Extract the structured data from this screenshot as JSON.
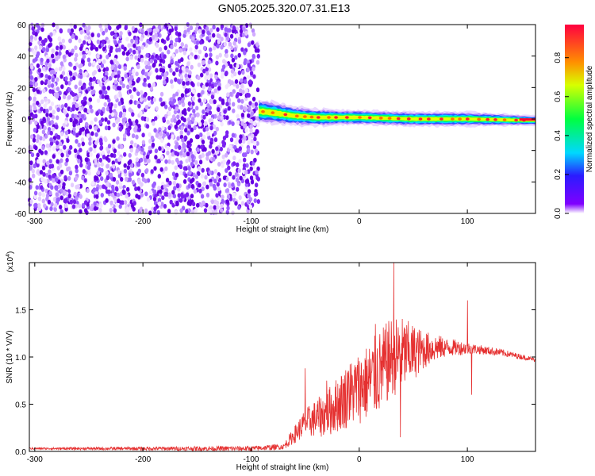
{
  "title": "GN05.2025.320.07.31.E13",
  "colors": {
    "snr_line": "#e53030",
    "scatter": "#6a00e6",
    "background": "#ffffff"
  },
  "chart_data": [
    {
      "type": "heatmap",
      "panel": "spectrogram",
      "xlabel": "Height of straight line (km)",
      "ylabel": "Frequency (Hz)",
      "xlim": [
        -305,
        163
      ],
      "ylim": [
        -60,
        60
      ],
      "xticks": [
        -300,
        -200,
        -100,
        0,
        100
      ],
      "yticks": [
        -60,
        -40,
        -20,
        0,
        20,
        40,
        60
      ],
      "noise_region_x": [
        -305,
        -93
      ],
      "signal_track": {
        "x_start": -93,
        "x_end": 163,
        "center_hz": [
          [
            -93,
            5
          ],
          [
            -80,
            4
          ],
          [
            -60,
            2
          ],
          [
            -40,
            1
          ],
          [
            0,
            1
          ],
          [
            50,
            0
          ],
          [
            100,
            0
          ],
          [
            163,
            -1
          ]
        ],
        "halfwidth_hz": [
          [
            -93,
            5
          ],
          [
            -60,
            4
          ],
          [
            0,
            3
          ],
          [
            100,
            3
          ],
          [
            163,
            2
          ]
        ]
      },
      "colorbar": {
        "label": "Normalized spectral amplitude",
        "ticks": [
          0.0,
          0.2,
          0.4,
          0.6,
          0.8
        ],
        "range": [
          0,
          0.97
        ],
        "colormap": "rainbow"
      }
    },
    {
      "type": "line",
      "panel": "snr",
      "xlabel": "Height of straight line (km)",
      "ylabel": "SNR (10 * V/V)",
      "scale_label": "(x10",
      "scale_exponent": "4",
      "scale_suffix": ")",
      "xlim": [
        -305,
        163
      ],
      "ylim": [
        0,
        2.0
      ],
      "xticks": [
        -300,
        -200,
        -100,
        0,
        100
      ],
      "yticks": [
        0.0,
        0.5,
        1.0,
        1.5
      ],
      "series": [
        {
          "name": "SNR",
          "envelope": [
            [
              -305,
              0.03
            ],
            [
              -100,
              0.03
            ],
            [
              -70,
              0.05
            ],
            [
              -50,
              0.3
            ],
            [
              -30,
              0.4
            ],
            [
              -10,
              0.6
            ],
            [
              10,
              0.75
            ],
            [
              20,
              0.85
            ],
            [
              30,
              1.0
            ],
            [
              50,
              1.05
            ],
            [
              70,
              1.1
            ],
            [
              90,
              1.1
            ],
            [
              110,
              1.08
            ],
            [
              130,
              1.05
            ],
            [
              163,
              0.97
            ]
          ],
          "amplitude": [
            [
              -305,
              0.01
            ],
            [
              -70,
              0.03
            ],
            [
              -50,
              0.15
            ],
            [
              -30,
              0.25
            ],
            [
              -10,
              0.35
            ],
            [
              20,
              0.45
            ],
            [
              40,
              0.4
            ],
            [
              60,
              0.2
            ],
            [
              80,
              0.1
            ],
            [
              110,
              0.05
            ],
            [
              163,
              0.02
            ]
          ],
          "spikes": [
            [
              -50,
              0.88
            ],
            [
              -30,
              0.75
            ],
            [
              -10,
              0.85
            ],
            [
              15,
              1.35
            ],
            [
              32,
              2.0
            ],
            [
              38,
              0.15
            ],
            [
              100,
              1.6
            ],
            [
              104,
              0.6
            ]
          ]
        }
      ]
    }
  ]
}
